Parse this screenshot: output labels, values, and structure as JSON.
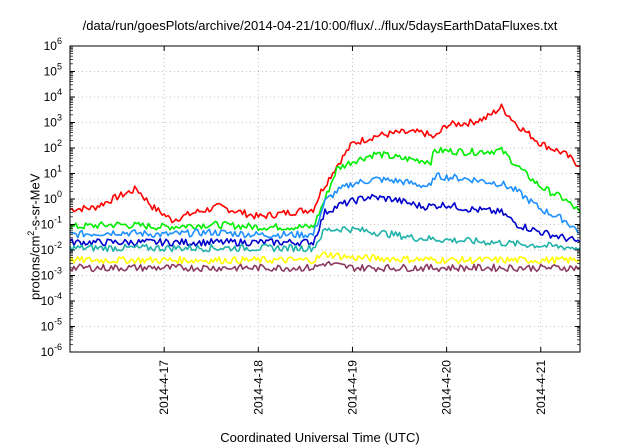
{
  "chart_data": {
    "type": "line",
    "title": "/data/run/goesPlots/archive/2014-04-21/10:00/flux/../flux/5daysEarthDataFluxes.txt",
    "xlabel": "Coordinated Universal Time (UTC)",
    "ylabel": {
      "pre": "protons/cm",
      "sup": "2",
      "post": "-s-sr-MeV"
    },
    "yscale": "log",
    "ylim": [
      1e-06,
      1000000.0
    ],
    "y_ticks": [
      {
        "value": 1e-06,
        "base": "10",
        "exp": "-6"
      },
      {
        "value": 1e-05,
        "base": "10",
        "exp": "-5"
      },
      {
        "value": 0.0001,
        "base": "10",
        "exp": "-4"
      },
      {
        "value": 0.001,
        "base": "10",
        "exp": "-3"
      },
      {
        "value": 0.01,
        "base": "10",
        "exp": "-2"
      },
      {
        "value": 0.1,
        "base": "10",
        "exp": "-1"
      },
      {
        "value": 1.0,
        "base": "10",
        "exp": "0"
      },
      {
        "value": 10.0,
        "base": "10",
        "exp": "1"
      },
      {
        "value": 100.0,
        "base": "10",
        "exp": "2"
      },
      {
        "value": 1000.0,
        "base": "10",
        "exp": "3"
      },
      {
        "value": 10000.0,
        "base": "10",
        "exp": "4"
      },
      {
        "value": 100000.0,
        "base": "10",
        "exp": "5"
      },
      {
        "value": 1000000.0,
        "base": "10",
        "exp": "6"
      }
    ],
    "xlim": [
      "2014-04-16 00:00",
      "2014-04-21 10:00"
    ],
    "x_ticks": [
      "2014-4-17",
      "2014-4-18",
      "2014-4-19",
      "2014-4-20",
      "2014-4-21"
    ],
    "grid": true,
    "legend": "none",
    "series": [
      {
        "color": "#ff0000",
        "values": [
          [
            "2014-04-16 00:00",
            0.4
          ],
          [
            "2014-04-16 06:00",
            0.45
          ],
          [
            "2014-04-16 12:00",
            1.2
          ],
          [
            "2014-04-16 17:00",
            2.5
          ],
          [
            "2014-04-16 21:00",
            0.5
          ],
          [
            "2014-04-17 02:00",
            0.15
          ],
          [
            "2014-04-17 08:00",
            0.3
          ],
          [
            "2014-04-17 14:00",
            0.5
          ],
          [
            "2014-04-18 00:00",
            0.2
          ],
          [
            "2014-04-18 08:00",
            0.3
          ],
          [
            "2014-04-18 14:00",
            0.4
          ],
          [
            "2014-04-18 16:00",
            2
          ],
          [
            "2014-04-18 20:00",
            20
          ],
          [
            "2014-04-19 00:00",
            150
          ],
          [
            "2014-04-19 06:00",
            300
          ],
          [
            "2014-04-19 12:00",
            400
          ],
          [
            "2014-04-19 18:00",
            400
          ],
          [
            "2014-04-19 21:00",
            250
          ],
          [
            "2014-04-20 00:00",
            800
          ],
          [
            "2014-04-20 06:00",
            1000
          ],
          [
            "2014-04-20 10:00",
            1500
          ],
          [
            "2014-04-20 14:00",
            4000
          ],
          [
            "2014-04-20 18:00",
            800
          ],
          [
            "2014-04-21 00:00",
            150
          ],
          [
            "2014-04-21 06:00",
            60
          ],
          [
            "2014-04-21 10:00",
            20
          ]
        ]
      },
      {
        "color": "#00ee00",
        "values": [
          [
            "2014-04-16 00:00",
            0.08
          ],
          [
            "2014-04-16 12:00",
            0.1
          ],
          [
            "2014-04-17 00:00",
            0.08
          ],
          [
            "2014-04-17 12:00",
            0.1
          ],
          [
            "2014-04-18 00:00",
            0.08
          ],
          [
            "2014-04-18 14:00",
            0.08
          ],
          [
            "2014-04-18 17:00",
            1
          ],
          [
            "2014-04-18 20:00",
            15
          ],
          [
            "2014-04-19 00:00",
            30
          ],
          [
            "2014-04-19 06:00",
            60
          ],
          [
            "2014-04-19 12:00",
            40
          ],
          [
            "2014-04-19 20:00",
            30
          ],
          [
            "2014-04-19 21:00",
            80
          ],
          [
            "2014-04-20 06:00",
            70
          ],
          [
            "2014-04-20 14:00",
            80
          ],
          [
            "2014-04-20 20:00",
            10
          ],
          [
            "2014-04-21 00:00",
            3
          ],
          [
            "2014-04-21 06:00",
            1
          ],
          [
            "2014-04-21 10:00",
            0.3
          ]
        ]
      },
      {
        "color": "#1e90ff",
        "values": [
          [
            "2014-04-16 00:00",
            0.04
          ],
          [
            "2014-04-16 12:00",
            0.05
          ],
          [
            "2014-04-17 00:00",
            0.04
          ],
          [
            "2014-04-17 12:00",
            0.05
          ],
          [
            "2014-04-18 00:00",
            0.04
          ],
          [
            "2014-04-18 14:00",
            0.04
          ],
          [
            "2014-04-18 17:00",
            0.8
          ],
          [
            "2014-04-18 20:00",
            2
          ],
          [
            "2014-04-19 00:00",
            4
          ],
          [
            "2014-04-19 06:00",
            6
          ],
          [
            "2014-04-19 12:00",
            5
          ],
          [
            "2014-04-19 20:00",
            3
          ],
          [
            "2014-04-19 21:00",
            8
          ],
          [
            "2014-04-20 06:00",
            6
          ],
          [
            "2014-04-20 14:00",
            4
          ],
          [
            "2014-04-20 18:00",
            2
          ],
          [
            "2014-04-21 00:00",
            0.4
          ],
          [
            "2014-04-21 06:00",
            0.15
          ],
          [
            "2014-04-21 10:00",
            0.05
          ]
        ]
      },
      {
        "color": "#0000cd",
        "values": [
          [
            "2014-04-16 00:00",
            0.02
          ],
          [
            "2014-04-16 12:00",
            0.02
          ],
          [
            "2014-04-17 00:00",
            0.02
          ],
          [
            "2014-04-17 12:00",
            0.02
          ],
          [
            "2014-04-18 00:00",
            0.02
          ],
          [
            "2014-04-18 14:00",
            0.02
          ],
          [
            "2014-04-18 17:00",
            0.3
          ],
          [
            "2014-04-18 21:00",
            0.6
          ],
          [
            "2014-04-19 04:00",
            1.2
          ],
          [
            "2014-04-19 10:00",
            1
          ],
          [
            "2014-04-19 18:00",
            0.5
          ],
          [
            "2014-04-20 00:00",
            0.6
          ],
          [
            "2014-04-20 06:00",
            0.4
          ],
          [
            "2014-04-20 14:00",
            0.3
          ],
          [
            "2014-04-20 18:00",
            0.1
          ],
          [
            "2014-04-21 00:00",
            0.05
          ],
          [
            "2014-04-21 06:00",
            0.03
          ],
          [
            "2014-04-21 10:00",
            0.02
          ]
        ]
      },
      {
        "color": "#20b2aa",
        "values": [
          [
            "2014-04-16 00:00",
            0.012
          ],
          [
            "2014-04-17 00:00",
            0.012
          ],
          [
            "2014-04-18 00:00",
            0.012
          ],
          [
            "2014-04-18 14:00",
            0.012
          ],
          [
            "2014-04-18 17:00",
            0.06
          ],
          [
            "2014-04-18 22:00",
            0.07
          ],
          [
            "2014-04-19 06:00",
            0.05
          ],
          [
            "2014-04-19 16:00",
            0.03
          ],
          [
            "2014-04-20 00:00",
            0.025
          ],
          [
            "2014-04-20 12:00",
            0.02
          ],
          [
            "2014-04-21 00:00",
            0.015
          ],
          [
            "2014-04-21 10:00",
            0.012
          ]
        ]
      },
      {
        "color": "#ffff00",
        "values": [
          [
            "2014-04-16 00:00",
            0.004
          ],
          [
            "2014-04-17 00:00",
            0.004
          ],
          [
            "2014-04-18 00:00",
            0.004
          ],
          [
            "2014-04-18 14:00",
            0.004
          ],
          [
            "2014-04-18 17:00",
            0.007
          ],
          [
            "2014-04-19 00:00",
            0.005
          ],
          [
            "2014-04-20 00:00",
            0.004
          ],
          [
            "2014-04-21 00:00",
            0.004
          ],
          [
            "2014-04-21 10:00",
            0.004
          ]
        ]
      },
      {
        "color": "#8b3a62",
        "values": [
          [
            "2014-04-16 00:00",
            0.002
          ],
          [
            "2014-04-17 00:00",
            0.002
          ],
          [
            "2014-04-18 00:00",
            0.002
          ],
          [
            "2014-04-18 14:00",
            0.002
          ],
          [
            "2014-04-18 17:00",
            0.003
          ],
          [
            "2014-04-19 00:00",
            0.002
          ],
          [
            "2014-04-20 00:00",
            0.002
          ],
          [
            "2014-04-21 00:00",
            0.002
          ],
          [
            "2014-04-21 10:00",
            0.002
          ]
        ]
      }
    ]
  }
}
